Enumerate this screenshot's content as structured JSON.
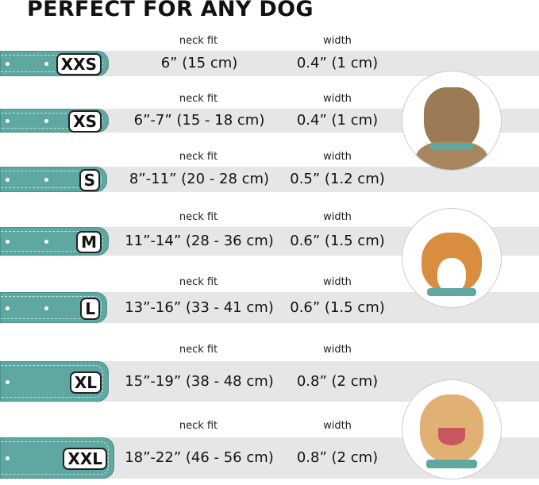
{
  "title": "PERFECT FOR ANY DOG",
  "labels": {
    "neck_fit": "neck fit",
    "width": "width"
  },
  "sizes": [
    {
      "size": "XXS",
      "neck": "6” (15 cm)",
      "width": "0.4” (1 cm)"
    },
    {
      "size": "XS",
      "neck": "6”-7” (15 - 18 cm)",
      "width": "0.4” (1 cm)"
    },
    {
      "size": "S",
      "neck": "8”-11” (20 - 28 cm)",
      "width": "0.5” (1.2 cm)"
    },
    {
      "size": "M",
      "neck": "11”-14” (28 - 36 cm)",
      "width": "0.6” (1.5 cm)"
    },
    {
      "size": "L",
      "neck": "13”-16” (33 - 41 cm)",
      "width": "0.6” (1.5 cm)"
    },
    {
      "size": "XL",
      "neck": "15”-19” (38 - 48 cm)",
      "width": "0.8” (2 cm)"
    },
    {
      "size": "XXL",
      "neck": "18”-22” (46 - 56 cm)",
      "width": "0.8” (2 cm)"
    }
  ],
  "colors": {
    "collar": "#5fa8a2",
    "band": "#e6e6e6"
  },
  "images": [
    "terrier-dog-photo",
    "corgi-dog-photo",
    "labrador-dog-photo"
  ]
}
